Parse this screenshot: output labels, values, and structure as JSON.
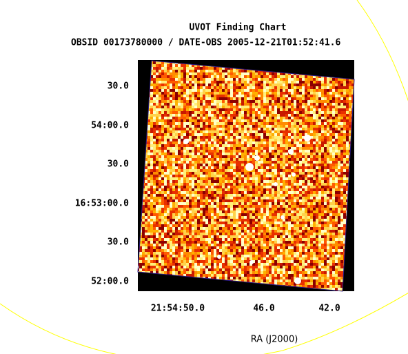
{
  "header": {
    "title": "UVOT Finding Chart",
    "subtitle": "OBSID 00173780000 / DATE-OBS 2005-12-21T01:52:41.6"
  },
  "y_axis": {
    "ticks": [
      "30.0",
      "54:00.0",
      "30.0",
      "16:53:00.0",
      "30.0",
      "52:00.0"
    ]
  },
  "x_axis": {
    "ticks": [
      "21:54:50.0",
      "46.0",
      "42.0"
    ],
    "label": "RA (J2000)"
  }
}
